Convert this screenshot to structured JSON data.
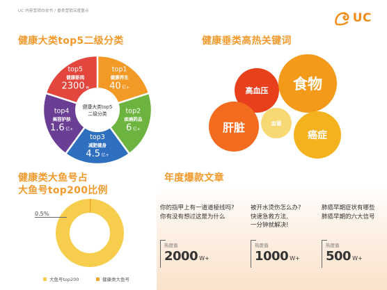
{
  "header": "UC 内容营销白皮书 / 垂类营销深度盘点",
  "logo": {
    "text": "UC",
    "color": "#f08c1c"
  },
  "sections": {
    "pie_title": "健康大类top5二级分类",
    "bubble_title": "健康垂类高热关键词",
    "donut_title_line1": "健康类大鱼号占",
    "donut_title_line2": "大鱼号top200比例",
    "article_title": "年度爆款文章"
  },
  "pie": {
    "center_line1": "健康大类top5",
    "center_line2": "二级分类",
    "slices": [
      {
        "rank": "top1",
        "category": "健康养生",
        "value": "40",
        "unit": "亿+",
        "color": "#f39a26",
        "share": 0.2
      },
      {
        "rank": "top2",
        "category": "疾病药品",
        "value": "6",
        "unit": "亿+",
        "color": "#6cb43f",
        "share": 0.2
      },
      {
        "rank": "top3",
        "category": "减肥健身",
        "value": "4.5",
        "unit": "亿+",
        "color": "#2f6fbf",
        "share": 0.2
      },
      {
        "rank": "top4",
        "category": "美容护肤",
        "value": "1.6",
        "unit": "亿+",
        "color": "#6a3e95",
        "share": 0.2
      },
      {
        "rank": "top5",
        "category": "健康新闻",
        "value": "2300",
        "unit": "w",
        "color": "#e2463c",
        "share": 0.2
      }
    ]
  },
  "bubbles": [
    {
      "label": "高血压",
      "color": "#e8401c"
    },
    {
      "label": "食物",
      "color": "#f39a1a"
    },
    {
      "label": "肝脏",
      "color": "#f26b1f"
    },
    {
      "label": "血管",
      "color": "#f7d66b"
    },
    {
      "label": "癌症",
      "color": "#f5b21f"
    }
  ],
  "donut": {
    "label": "0.5%",
    "share_percent": 0.5,
    "colors": {
      "big_fish": "#f6cd4c",
      "health": "#f0a62e"
    },
    "legend": [
      {
        "label": "大鱼号top200",
        "color": "#f6cd4c"
      },
      {
        "label": "健康类大鱼号",
        "color": "#f0a62e"
      }
    ]
  },
  "articles": [
    {
      "line1": "你的指甲上有一道道棱线吗?",
      "line2": "你有没有想过这是为什么",
      "line3": "",
      "heat_label": "热度值",
      "heat_value": "2000",
      "heat_unit": "W+"
    },
    {
      "line1": "被开水烫伤怎么办?",
      "line2": "快速急救方法,",
      "line3": "一分钟就解决!",
      "heat_label": "热度值",
      "heat_value": "1000",
      "heat_unit": "W+"
    },
    {
      "line1": "肺癌早期症状有哪些",
      "line2": "肺癌早期的六大信号",
      "line3": "",
      "heat_label": "热度值",
      "heat_value": "500",
      "heat_unit": "W+"
    }
  ]
}
